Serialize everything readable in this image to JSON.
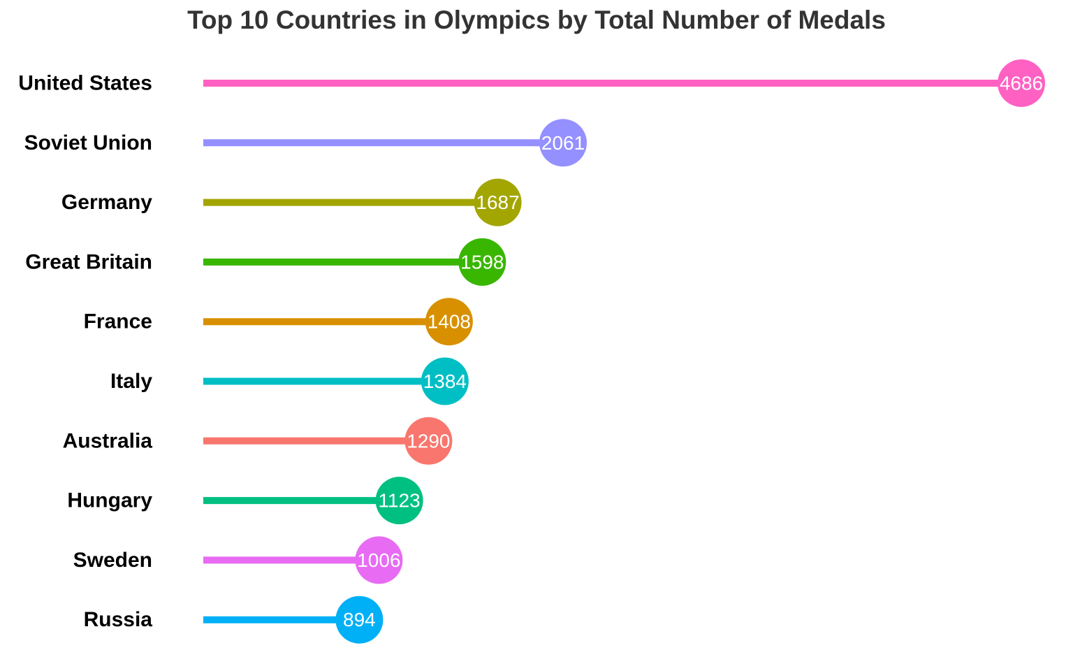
{
  "chart_data": {
    "type": "lollipop",
    "title": "Top 10 Countries in Olympics by Total Number of Medals",
    "xlabel": "",
    "ylabel": "",
    "grid": false,
    "legend": "none",
    "xlim": [
      0,
      4686
    ],
    "categories": [
      "United States",
      "Soviet Union",
      "Germany",
      "Great Britain",
      "France",
      "Italy",
      "Australia",
      "Hungary",
      "Sweden",
      "Russia"
    ],
    "values": [
      4686,
      2061,
      1687,
      1598,
      1408,
      1384,
      1290,
      1123,
      1006,
      894
    ],
    "colors": [
      "#FF61C3",
      "#9590FF",
      "#A3A500",
      "#39B600",
      "#D89000",
      "#00BFC4",
      "#F8766D",
      "#00C081",
      "#E76BF3",
      "#00B0F6"
    ]
  }
}
